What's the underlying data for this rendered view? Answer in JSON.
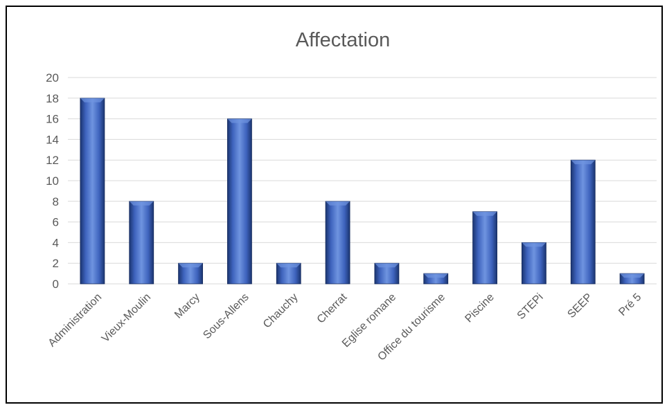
{
  "chart_data": {
    "type": "bar",
    "title": "Affectation",
    "categories": [
      "Administration",
      "Vieux-Moulin",
      "Marcy",
      "Sous-Allens",
      "Chauchy",
      "Cherrat",
      "Eglise romane",
      "Office du tourisme",
      "Piscine",
      "STEPi",
      "SEEP",
      "Pré 5"
    ],
    "values": [
      18,
      8,
      2,
      16,
      2,
      8,
      2,
      1,
      7,
      4,
      12,
      1
    ],
    "xlabel": "",
    "ylabel": "",
    "ylim": [
      0,
      20
    ],
    "yticks": [
      0,
      2,
      4,
      6,
      8,
      10,
      12,
      14,
      16,
      18,
      20
    ],
    "grid": true,
    "legend": "none",
    "colors": {
      "bar_light": "#6f94e0",
      "bar_mid": "#3e63bd",
      "bar_dark": "#1b3570",
      "grid": "#d9d9d9",
      "text": "#595959"
    }
  }
}
